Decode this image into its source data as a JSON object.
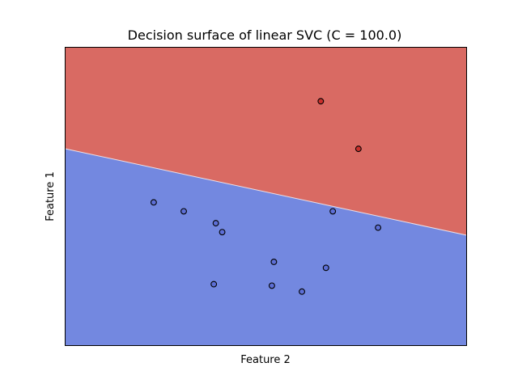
{
  "chart_data": {
    "type": "scatter",
    "title": "Decision surface of linear SVC (C = 100.0)",
    "xlabel": "Feature 2",
    "ylabel": "Feature 1",
    "xlim": [
      0,
      10
    ],
    "ylim": [
      0,
      10
    ],
    "ticks": "none",
    "grid": false,
    "regions": [
      {
        "class": "upper",
        "color": "#d96a63"
      },
      {
        "class": "lower",
        "color": "#7388e0"
      }
    ],
    "decision_boundary": {
      "points": [
        [
          0,
          6.6
        ],
        [
          10,
          3.7
        ]
      ]
    },
    "points": [
      {
        "x": 6.37,
        "y": 8.2,
        "class": "upper",
        "color": "#c9302c"
      },
      {
        "x": 7.31,
        "y": 6.6,
        "class": "upper",
        "color": "#c9302c"
      },
      {
        "x": 2.2,
        "y": 4.8,
        "class": "lower",
        "color": "#5d6fd6"
      },
      {
        "x": 2.95,
        "y": 4.5,
        "class": "lower",
        "color": "#5d6fd6"
      },
      {
        "x": 3.75,
        "y": 4.1,
        "class": "lower",
        "color": "#5d6fd6"
      },
      {
        "x": 3.91,
        "y": 3.8,
        "class": "lower",
        "color": "#5d6fd6"
      },
      {
        "x": 6.67,
        "y": 4.5,
        "class": "lower",
        "color": "#5d6fd6"
      },
      {
        "x": 7.8,
        "y": 3.95,
        "class": "lower",
        "color": "#5d6fd6"
      },
      {
        "x": 5.2,
        "y": 2.8,
        "class": "lower",
        "color": "#5d6fd6"
      },
      {
        "x": 6.5,
        "y": 2.6,
        "class": "lower",
        "color": "#5d6fd6"
      },
      {
        "x": 3.7,
        "y": 2.05,
        "class": "lower",
        "color": "#5d6fd6"
      },
      {
        "x": 5.15,
        "y": 2.0,
        "class": "lower",
        "color": "#5d6fd6"
      },
      {
        "x": 5.9,
        "y": 1.8,
        "class": "lower",
        "color": "#5d6fd6"
      }
    ]
  }
}
